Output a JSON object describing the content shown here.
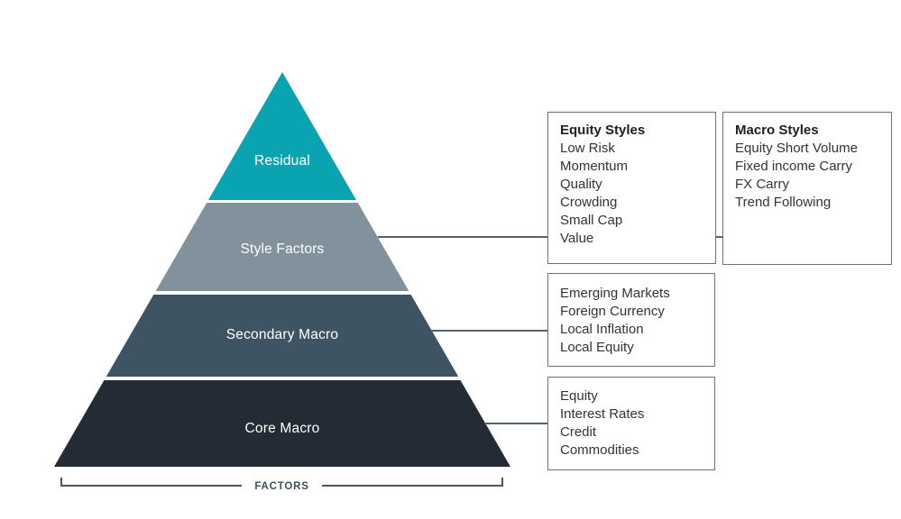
{
  "pyramid": {
    "layers": [
      {
        "label": "Residual",
        "color": "#0aa3b2"
      },
      {
        "label": "Style Factors",
        "color": "#82929c"
      },
      {
        "label": "Secondary Macro",
        "color": "#3e5462"
      },
      {
        "label": "Core Macro",
        "color": "#232c35"
      }
    ]
  },
  "boxes": {
    "equity_styles": {
      "title": "Equity Styles",
      "items": [
        "Low Risk",
        "Momentum",
        "Quality",
        "Crowding",
        "Small Cap",
        "Value"
      ]
    },
    "macro_styles": {
      "title": "Macro Styles",
      "items": [
        "Equity Short Volume",
        "Fixed income Carry",
        "FX Carry",
        "Trend Following"
      ]
    },
    "secondary_macro_factors": {
      "items": [
        "Emerging Markets",
        "Foreign Currency",
        "Local Inflation",
        "Local Equity"
      ]
    },
    "core_macro_factors": {
      "items": [
        "Equity",
        "Interest Rates",
        "Credit",
        "Commodities"
      ]
    }
  },
  "bracket": {
    "label": "FACTORS"
  },
  "colors": {
    "connector_line": "#56636e",
    "bracket_line": "#47565f",
    "box_border": "#68737d",
    "label_text": "#ffffff",
    "factors_text": "#3e4f5c"
  }
}
